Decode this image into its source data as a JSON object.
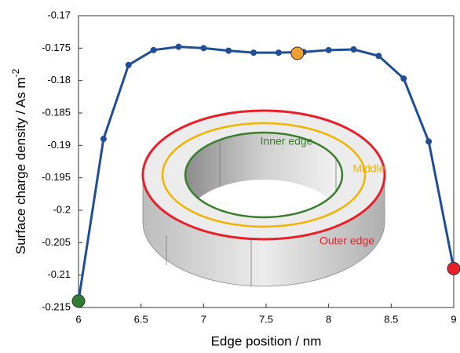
{
  "chart_data": {
    "type": "line",
    "x_label": "Edge position / nm",
    "y_label": {
      "text": "Surface charge density / As m",
      "superscript": "-2"
    },
    "xlim": [
      6,
      9
    ],
    "xticks": [
      6,
      6.5,
      7,
      7.5,
      8,
      8.5,
      9
    ],
    "ylim": [
      -0.215,
      -0.17
    ],
    "yticks": [
      -0.215,
      -0.21,
      -0.205,
      -0.2,
      -0.195,
      -0.19,
      -0.185,
      -0.18,
      -0.175,
      -0.17
    ],
    "series": [
      {
        "color": "#1f4e96",
        "marker": true,
        "x": [
          6.0,
          6.2,
          6.4,
          6.6,
          6.8,
          7.0,
          7.2,
          7.4,
          7.6,
          7.8,
          8.0,
          8.2,
          8.4,
          8.6,
          8.8,
          9.0
        ],
        "values": [
          -0.214,
          -0.189,
          -0.1776,
          -0.1753,
          -0.1748,
          -0.175,
          -0.1754,
          -0.1757,
          -0.1757,
          -0.1756,
          -0.1753,
          -0.1752,
          -0.1762,
          -0.1797,
          -0.1894,
          -0.209
        ]
      },
      {
        "color": "#2e7d32",
        "highlight": true,
        "x": [
          6.0
        ],
        "values": [
          -0.214
        ]
      },
      {
        "color": "#f0a030",
        "highlight": true,
        "x": [
          7.75
        ],
        "values": [
          -0.1758
        ]
      },
      {
        "color": "#e8202a",
        "highlight": true,
        "x": [
          9.0
        ],
        "values": [
          -0.209
        ]
      }
    ],
    "annotations": [
      {
        "text": "Inner edge",
        "color": "#3a7d2c"
      },
      {
        "text": "Middle",
        "color": "#f2b300"
      },
      {
        "text": "Outer edge",
        "color": "#e8202a"
      }
    ]
  }
}
